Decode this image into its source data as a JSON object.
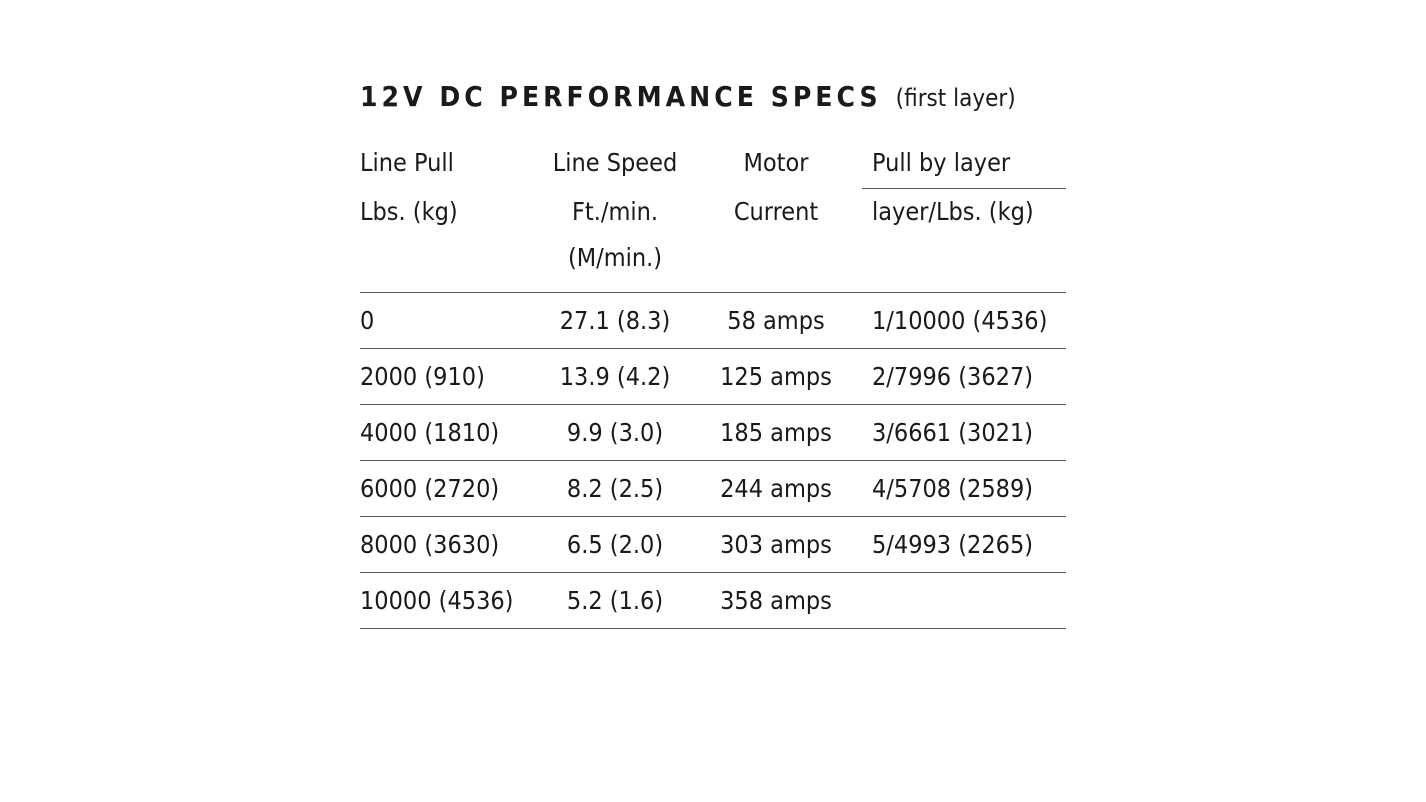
{
  "title": "12V DC PERFORMANCE SPECS",
  "subtitle": "(first layer)",
  "table": {
    "header": [
      [
        "Line Pull",
        "Line Speed",
        "Motor",
        "Pull by layer"
      ],
      [
        "Lbs. (kg)",
        "Ft./min. (M/min.)",
        "Current",
        "layer/Lbs. (kg)"
      ]
    ],
    "rows": [
      [
        "0",
        "27.1 (8.3)",
        "58 amps",
        "1/10000 (4536)"
      ],
      [
        "2000 (910)",
        "13.9 (4.2)",
        "125 amps",
        "2/7996 (3627)"
      ],
      [
        "4000 (1810)",
        "9.9 (3.0)",
        "185 amps",
        "3/6661 (3021)"
      ],
      [
        "6000 (2720)",
        "8.2 (2.5)",
        "244 amps",
        "4/5708 (2589)"
      ],
      [
        "8000 (3630)",
        "6.5 (2.0)",
        "303 amps",
        "5/4993 (2265)"
      ],
      [
        "10000 (4536)",
        "5.2 (1.6)",
        "358 amps"
      ]
    ]
  }
}
